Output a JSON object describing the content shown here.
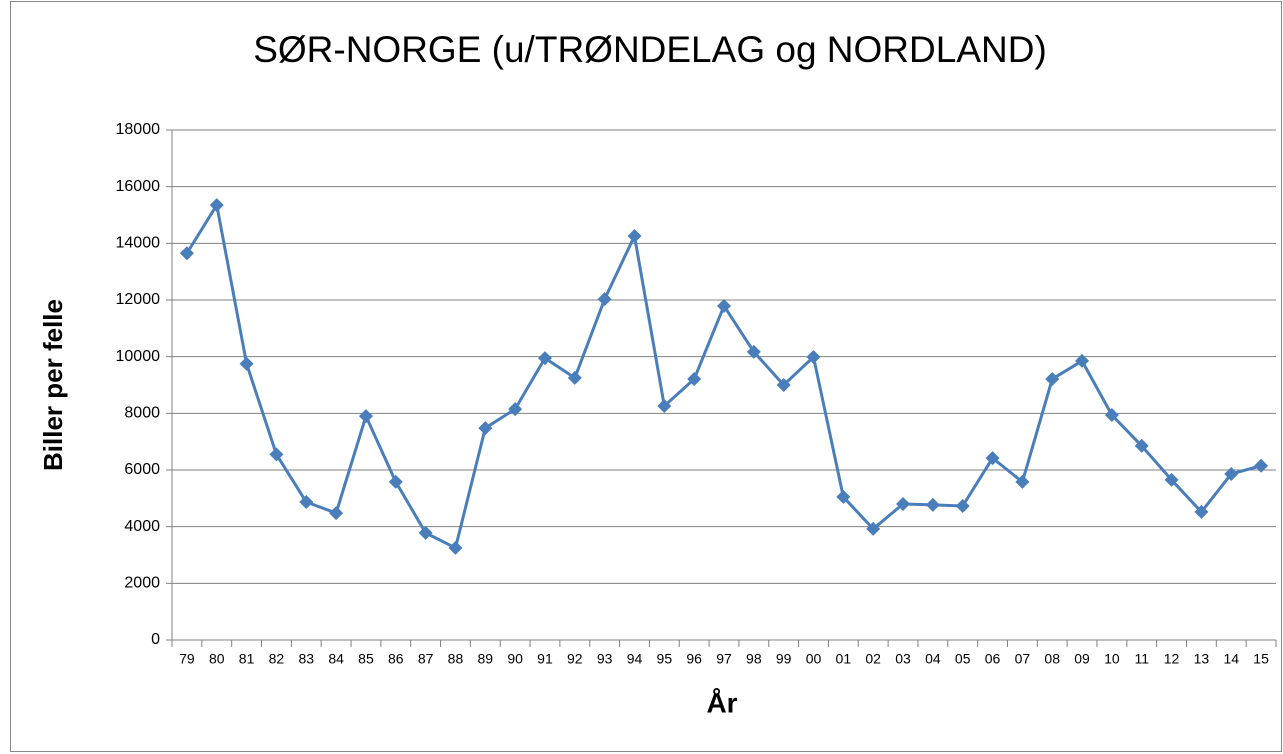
{
  "chart_data": {
    "type": "line",
    "title": "SØR-NORGE (u/TRØNDELAG og NORDLAND)",
    "x_label": "År",
    "y_label": "Biller per felle",
    "categories": [
      "79",
      "80",
      "81",
      "82",
      "83",
      "84",
      "85",
      "86",
      "87",
      "88",
      "89",
      "90",
      "91",
      "92",
      "93",
      "94",
      "95",
      "96",
      "97",
      "98",
      "99",
      "00",
      "01",
      "02",
      "03",
      "04",
      "05",
      "06",
      "07",
      "08",
      "09",
      "10",
      "11",
      "12",
      "13",
      "14",
      "15"
    ],
    "series": [
      {
        "color": "#4a7ebb",
        "values": [
          13650,
          15350,
          9750,
          6550,
          4870,
          4480,
          7900,
          5580,
          3780,
          3250,
          7480,
          8150,
          9950,
          9250,
          12030,
          14260,
          8260,
          9210,
          11790,
          10170,
          9000,
          9990,
          5050,
          3920,
          4800,
          4770,
          4730,
          6420,
          5580,
          9210,
          9850,
          7940,
          6850,
          5650,
          4520,
          5860,
          6150
        ]
      }
    ],
    "ylim": [
      0,
      18000
    ],
    "yticks": [
      0,
      2000,
      4000,
      6000,
      8000,
      10000,
      12000,
      14000,
      16000,
      18000
    ],
    "grid": true
  }
}
